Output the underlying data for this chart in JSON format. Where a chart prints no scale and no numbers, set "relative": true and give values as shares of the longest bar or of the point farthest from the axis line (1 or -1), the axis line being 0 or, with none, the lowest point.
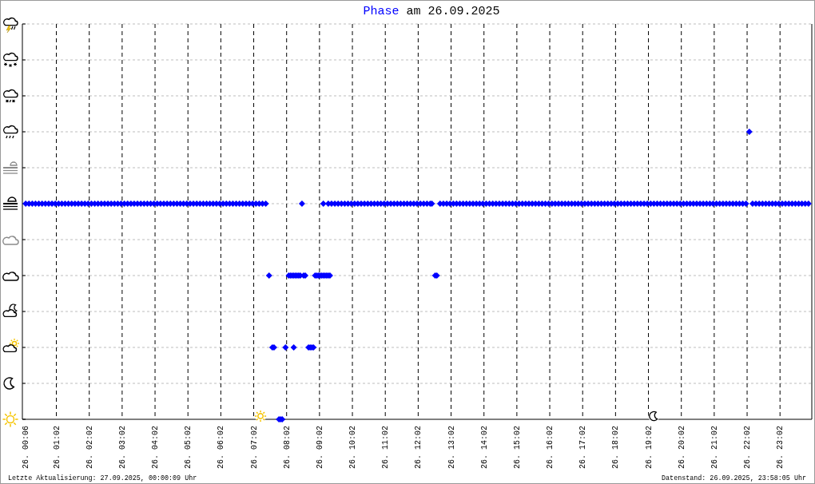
{
  "chart_data": {
    "type": "scatter",
    "title": "am 26.09.2025",
    "legend": "top",
    "marker": "diamond",
    "relative": true,
    "grid": true,
    "xlim": [
      "2025-09-26T00:00",
      "2025-09-27T00:00"
    ],
    "xticks": [
      {
        "value": "2025-09-26T00:06",
        "label": "26. 00:06"
      },
      {
        "value": "2025-09-26T01:02",
        "label": "26. 01:02"
      },
      {
        "value": "2025-09-26T02:02",
        "label": "26. 02:02"
      },
      {
        "value": "2025-09-26T03:02",
        "label": "26. 03:02"
      },
      {
        "value": "2025-09-26T04:02",
        "label": "26. 04:02"
      },
      {
        "value": "2025-09-26T05:02",
        "label": "26. 05:02"
      },
      {
        "value": "2025-09-26T06:02",
        "label": "26. 06:02"
      },
      {
        "value": "2025-09-26T07:02",
        "label": "26. 07:02"
      },
      {
        "value": "2025-09-26T08:02",
        "label": "26. 08:02"
      },
      {
        "value": "2025-09-26T09:02",
        "label": "26. 09:02"
      },
      {
        "value": "2025-09-26T10:02",
        "label": "26. 10:02"
      },
      {
        "value": "2025-09-26T11:02",
        "label": "26. 11:02"
      },
      {
        "value": "2025-09-26T12:02",
        "label": "26. 12:02"
      },
      {
        "value": "2025-09-26T13:02",
        "label": "26. 13:02"
      },
      {
        "value": "2025-09-26T14:02",
        "label": "26. 14:02"
      },
      {
        "value": "2025-09-26T15:02",
        "label": "26. 15:02"
      },
      {
        "value": "2025-09-26T16:02",
        "label": "26. 16:02"
      },
      {
        "value": "2025-09-26T17:02",
        "label": "26. 17:02"
      },
      {
        "value": "2025-09-26T18:02",
        "label": "26. 18:02"
      },
      {
        "value": "2025-09-26T19:02",
        "label": "26. 19:02"
      },
      {
        "value": "2025-09-26T20:02",
        "label": "26. 20:02"
      },
      {
        "value": "2025-09-26T21:02",
        "label": "26. 21:02"
      },
      {
        "value": "2025-09-26T22:02",
        "label": "26. 22:02"
      },
      {
        "value": "2025-09-26T23:02",
        "label": "26. 23:02"
      }
    ],
    "series": [
      {
        "name": "Phase",
        "color": "#0000ff",
        "x": [
          "2025-09-26T00:06",
          "2025-09-26T00:12",
          "2025-09-26T00:18",
          "2025-09-26T00:24",
          "2025-09-26T00:30",
          "2025-09-26T00:36",
          "2025-09-26T00:42",
          "2025-09-26T00:48",
          "2025-09-26T00:54",
          "2025-09-26T01:00",
          "2025-09-26T01:06",
          "2025-09-26T01:12",
          "2025-09-26T01:18",
          "2025-09-26T01:24",
          "2025-09-26T01:30",
          "2025-09-26T01:36",
          "2025-09-26T01:42",
          "2025-09-26T01:48",
          "2025-09-26T01:54",
          "2025-09-26T02:00",
          "2025-09-26T02:06",
          "2025-09-26T02:12",
          "2025-09-26T02:18",
          "2025-09-26T02:24",
          "2025-09-26T02:30",
          "2025-09-26T02:36",
          "2025-09-26T02:42",
          "2025-09-26T02:48",
          "2025-09-26T02:54",
          "2025-09-26T03:00",
          "2025-09-26T03:06",
          "2025-09-26T03:12",
          "2025-09-26T03:18",
          "2025-09-26T03:24",
          "2025-09-26T03:30",
          "2025-09-26T03:36",
          "2025-09-26T03:42",
          "2025-09-26T03:48",
          "2025-09-26T03:54",
          "2025-09-26T04:00",
          "2025-09-26T04:06",
          "2025-09-26T04:12",
          "2025-09-26T04:18",
          "2025-09-26T04:24",
          "2025-09-26T04:30",
          "2025-09-26T04:36",
          "2025-09-26T04:42",
          "2025-09-26T04:48",
          "2025-09-26T04:54",
          "2025-09-26T05:00",
          "2025-09-26T05:06",
          "2025-09-26T05:12",
          "2025-09-26T05:18",
          "2025-09-26T05:24",
          "2025-09-26T05:30",
          "2025-09-26T05:36",
          "2025-09-26T05:42",
          "2025-09-26T05:48",
          "2025-09-26T05:54",
          "2025-09-26T06:00",
          "2025-09-26T06:06",
          "2025-09-26T06:12",
          "2025-09-26T06:18",
          "2025-09-26T06:24",
          "2025-09-26T06:30",
          "2025-09-26T06:36",
          "2025-09-26T06:42",
          "2025-09-26T06:48",
          "2025-09-26T06:54",
          "2025-09-26T07:00",
          "2025-09-26T07:06",
          "2025-09-26T07:12",
          "2025-09-26T07:18",
          "2025-09-26T07:24",
          "2025-09-26T07:30",
          "2025-09-26T07:36",
          "2025-09-26T07:39",
          "2025-09-26T07:48",
          "2025-09-26T07:51",
          "2025-09-26T07:54",
          "2025-09-26T08:00",
          "2025-09-26T08:06",
          "2025-09-26T08:09",
          "2025-09-26T08:12",
          "2025-09-26T08:15",
          "2025-09-26T08:15",
          "2025-09-26T08:18",
          "2025-09-26T08:21",
          "2025-09-26T08:24",
          "2025-09-26T08:27",
          "2025-09-26T08:30",
          "2025-09-26T08:33",
          "2025-09-26T08:36",
          "2025-09-26T08:42",
          "2025-09-26T08:45",
          "2025-09-26T08:48",
          "2025-09-26T08:51",
          "2025-09-26T08:54",
          "2025-09-26T08:57",
          "2025-09-26T09:00",
          "2025-09-26T09:03",
          "2025-09-26T09:06",
          "2025-09-26T09:09",
          "2025-09-26T09:09",
          "2025-09-26T09:12",
          "2025-09-26T09:15",
          "2025-09-26T09:18",
          "2025-09-26T09:18",
          "2025-09-26T09:21",
          "2025-09-26T09:24",
          "2025-09-26T09:30",
          "2025-09-26T09:36",
          "2025-09-26T09:42",
          "2025-09-26T09:48",
          "2025-09-26T09:54",
          "2025-09-26T10:00",
          "2025-09-26T10:06",
          "2025-09-26T10:12",
          "2025-09-26T10:18",
          "2025-09-26T10:24",
          "2025-09-26T10:30",
          "2025-09-26T10:36",
          "2025-09-26T10:42",
          "2025-09-26T10:48",
          "2025-09-26T10:54",
          "2025-09-26T11:00",
          "2025-09-26T11:06",
          "2025-09-26T11:12",
          "2025-09-26T11:18",
          "2025-09-26T11:24",
          "2025-09-26T11:30",
          "2025-09-26T11:36",
          "2025-09-26T11:42",
          "2025-09-26T11:48",
          "2025-09-26T11:54",
          "2025-09-26T12:00",
          "2025-09-26T12:06",
          "2025-09-26T12:12",
          "2025-09-26T12:18",
          "2025-09-26T12:24",
          "2025-09-26T12:27",
          "2025-09-26T12:33",
          "2025-09-26T12:36",
          "2025-09-26T12:42",
          "2025-09-26T12:48",
          "2025-09-26T12:54",
          "2025-09-26T13:00",
          "2025-09-26T13:06",
          "2025-09-26T13:12",
          "2025-09-26T13:18",
          "2025-09-26T13:24",
          "2025-09-26T13:30",
          "2025-09-26T13:36",
          "2025-09-26T13:42",
          "2025-09-26T13:48",
          "2025-09-26T13:54",
          "2025-09-26T14:00",
          "2025-09-26T14:06",
          "2025-09-26T14:12",
          "2025-09-26T14:18",
          "2025-09-26T14:24",
          "2025-09-26T14:30",
          "2025-09-26T14:36",
          "2025-09-26T14:42",
          "2025-09-26T14:48",
          "2025-09-26T14:54",
          "2025-09-26T15:00",
          "2025-09-26T15:06",
          "2025-09-26T15:12",
          "2025-09-26T15:18",
          "2025-09-26T15:24",
          "2025-09-26T15:30",
          "2025-09-26T15:36",
          "2025-09-26T15:42",
          "2025-09-26T15:48",
          "2025-09-26T15:54",
          "2025-09-26T16:00",
          "2025-09-26T16:06",
          "2025-09-26T16:12",
          "2025-09-26T16:18",
          "2025-09-26T16:24",
          "2025-09-26T16:30",
          "2025-09-26T16:36",
          "2025-09-26T16:42",
          "2025-09-26T16:48",
          "2025-09-26T16:54",
          "2025-09-26T17:00",
          "2025-09-26T17:06",
          "2025-09-26T17:12",
          "2025-09-26T17:18",
          "2025-09-26T17:24",
          "2025-09-26T17:30",
          "2025-09-26T17:36",
          "2025-09-26T17:42",
          "2025-09-26T17:48",
          "2025-09-26T17:54",
          "2025-09-26T18:00",
          "2025-09-26T18:06",
          "2025-09-26T18:12",
          "2025-09-26T18:18",
          "2025-09-26T18:24",
          "2025-09-26T18:30",
          "2025-09-26T18:36",
          "2025-09-26T18:42",
          "2025-09-26T18:48",
          "2025-09-26T18:54",
          "2025-09-26T19:00",
          "2025-09-26T19:06",
          "2025-09-26T19:12",
          "2025-09-26T19:18",
          "2025-09-26T19:24",
          "2025-09-26T19:30",
          "2025-09-26T19:36",
          "2025-09-26T19:42",
          "2025-09-26T19:48",
          "2025-09-26T19:54",
          "2025-09-26T20:00",
          "2025-09-26T20:06",
          "2025-09-26T20:12",
          "2025-09-26T20:18",
          "2025-09-26T20:24",
          "2025-09-26T20:30",
          "2025-09-26T20:36",
          "2025-09-26T20:42",
          "2025-09-26T20:48",
          "2025-09-26T20:54",
          "2025-09-26T21:00",
          "2025-09-26T21:06",
          "2025-09-26T21:12",
          "2025-09-26T21:18",
          "2025-09-26T21:24",
          "2025-09-26T21:30",
          "2025-09-26T21:36",
          "2025-09-26T21:42",
          "2025-09-26T21:48",
          "2025-09-26T21:54",
          "2025-09-26T22:00",
          "2025-09-26T22:06",
          "2025-09-26T22:12",
          "2025-09-26T22:18",
          "2025-09-26T22:24",
          "2025-09-26T22:30",
          "2025-09-26T22:36",
          "2025-09-26T22:42",
          "2025-09-26T22:48",
          "2025-09-26T22:54",
          "2025-09-26T23:00",
          "2025-09-26T23:06",
          "2025-09-26T23:12",
          "2025-09-26T23:18",
          "2025-09-26T23:24",
          "2025-09-26T23:30",
          "2025-09-26T23:36",
          "2025-09-26T23:42",
          "2025-09-26T23:48",
          "2025-09-26T23:54"
        ],
        "values": [
          0.75,
          0.75,
          0.75,
          0.75,
          0.75,
          0.75,
          0.75,
          0.75,
          0.75,
          0.75,
          0.75,
          0.75,
          0.75,
          0.75,
          0.75,
          0.75,
          0.75,
          0.75,
          0.75,
          0.75,
          0.75,
          0.75,
          0.75,
          0.75,
          0.75,
          0.75,
          0.75,
          0.75,
          0.75,
          0.75,
          0.75,
          0.75,
          0.75,
          0.75,
          0.75,
          0.75,
          0.75,
          0.75,
          0.75,
          0.75,
          0.75,
          0.75,
          0.75,
          0.75,
          0.75,
          0.75,
          0.75,
          0.75,
          0.75,
          0.75,
          0.75,
          0.75,
          0.75,
          0.75,
          0.75,
          0.75,
          0.75,
          0.75,
          0.75,
          0.75,
          0.75,
          0.75,
          0.75,
          0.75,
          0.75,
          0.75,
          0.75,
          0.75,
          0.75,
          0.75,
          0.75,
          0.75,
          0.75,
          0.75,
          0.5,
          0.25,
          0.25,
          0,
          0,
          0,
          0.25,
          0.5,
          0.5,
          0.5,
          0.5,
          0.25,
          0.5,
          0.5,
          0.5,
          0.5,
          0.75,
          0.5,
          0.5,
          0.25,
          0.25,
          0.25,
          0.25,
          0.5,
          0.5,
          0.5,
          0.5,
          0.5,
          0.5,
          0.75,
          0.5,
          0.5,
          0.5,
          0.75,
          0.5,
          0.75,
          0.75,
          0.75,
          0.75,
          0.75,
          0.75,
          0.75,
          0.75,
          0.75,
          0.75,
          0.75,
          0.75,
          0.75,
          0.75,
          0.75,
          0.75,
          0.75,
          0.75,
          0.75,
          0.75,
          0.75,
          0.75,
          0.75,
          0.75,
          0.75,
          0.75,
          0.75,
          0.75,
          0.75,
          0.75,
          0.75,
          0.75,
          0.5,
          0.5,
          0.75,
          0.75,
          0.75,
          0.75,
          0.75,
          0.75,
          0.75,
          0.75,
          0.75,
          0.75,
          0.75,
          0.75,
          0.75,
          0.75,
          0.75,
          0.75,
          0.75,
          0.75,
          0.75,
          0.75,
          0.75,
          0.75,
          0.75,
          0.75,
          0.75,
          0.75,
          0.75,
          0.75,
          0.75,
          0.75,
          0.75,
          0.75,
          0.75,
          0.75,
          0.75,
          0.75,
          0.75,
          0.75,
          0.75,
          0.75,
          0.75,
          0.75,
          0.75,
          0.75,
          0.75,
          0.75,
          0.75,
          0.75,
          0.75,
          0.75,
          0.75,
          0.75,
          0.75,
          0.75,
          0.75,
          0.75,
          0.75,
          0.75,
          0.75,
          0.75,
          0.75,
          0.75,
          0.75,
          0.75,
          0.75,
          0.75,
          0.75,
          0.75,
          0.75,
          0.75,
          0.75,
          0.75,
          0.75,
          0.75,
          0.75,
          0.75,
          0.75,
          0.75,
          0.75,
          0.75,
          0.75,
          0.75,
          0.75,
          0.75,
          0.75,
          0.75,
          0.75,
          0.75,
          0.75,
          0.75,
          0.75,
          0.75,
          0.75,
          0.75,
          1,
          0.75,
          0.75,
          0.75,
          0.75,
          0.75,
          0.75,
          0.75,
          0.75,
          0.75,
          0.75,
          0.75,
          0.75,
          0.75,
          0.75,
          0.75,
          0.75,
          0.75,
          0.75
        ]
      }
    ],
    "annotations": [
      "Letzte Aktualisierung: 27.09.2025, 00:00:09 Uhr",
      "Datenstand: 26.09.2025, 23:58:05 Uhr"
    ]
  }
}
